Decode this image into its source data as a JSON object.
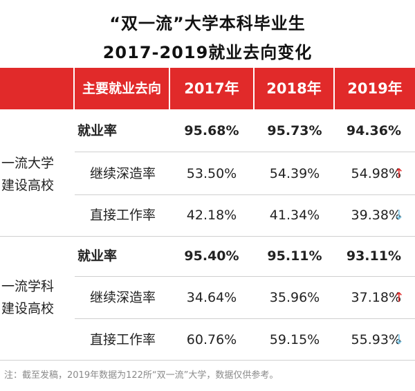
{
  "title_line1": "“双一流”大学本科毕业生",
  "title_line2": "2017-2019就业去向变化",
  "header": {
    "label": "主要就业去向",
    "y2017": "2017年",
    "y2018": "2018年",
    "y2019": "2019年"
  },
  "groups": [
    {
      "name_line1": "一流大学",
      "name_line2": "建设高校",
      "rows": [
        {
          "label": "就业率",
          "v2017": "95.68%",
          "v2018": "95.73%",
          "v2019": "94.36%",
          "bold": true,
          "trend": ""
        },
        {
          "label": "继续深造率",
          "v2017": "53.50%",
          "v2018": "54.39%",
          "v2019": "54.98%",
          "bold": false,
          "trend": "up"
        },
        {
          "label": "直接工作率",
          "v2017": "42.18%",
          "v2018": "41.34%",
          "v2019": "39.38%",
          "bold": false,
          "trend": "down"
        }
      ]
    },
    {
      "name_line1": "一流学科",
      "name_line2": "建设高校",
      "rows": [
        {
          "label": "就业率",
          "v2017": "95.40%",
          "v2018": "95.11%",
          "v2019": "93.11%",
          "bold": true,
          "trend": ""
        },
        {
          "label": "继续深造率",
          "v2017": "34.64%",
          "v2018": "35.96%",
          "v2019": "37.18%",
          "bold": false,
          "trend": "up"
        },
        {
          "label": "直接工作率",
          "v2017": "60.76%",
          "v2018": "59.15%",
          "v2019": "55.93%",
          "bold": false,
          "trend": "down"
        }
      ]
    }
  ],
  "arrows": {
    "up": "↑",
    "down": "↓"
  },
  "note": "注：截至发稿，2019年数据为122所“双一流”大学，数据仅供参考。",
  "colors": {
    "header_bg": "#e12a2a",
    "arrow_up": "#e12a2a",
    "arrow_down": "#7ec8e8"
  }
}
